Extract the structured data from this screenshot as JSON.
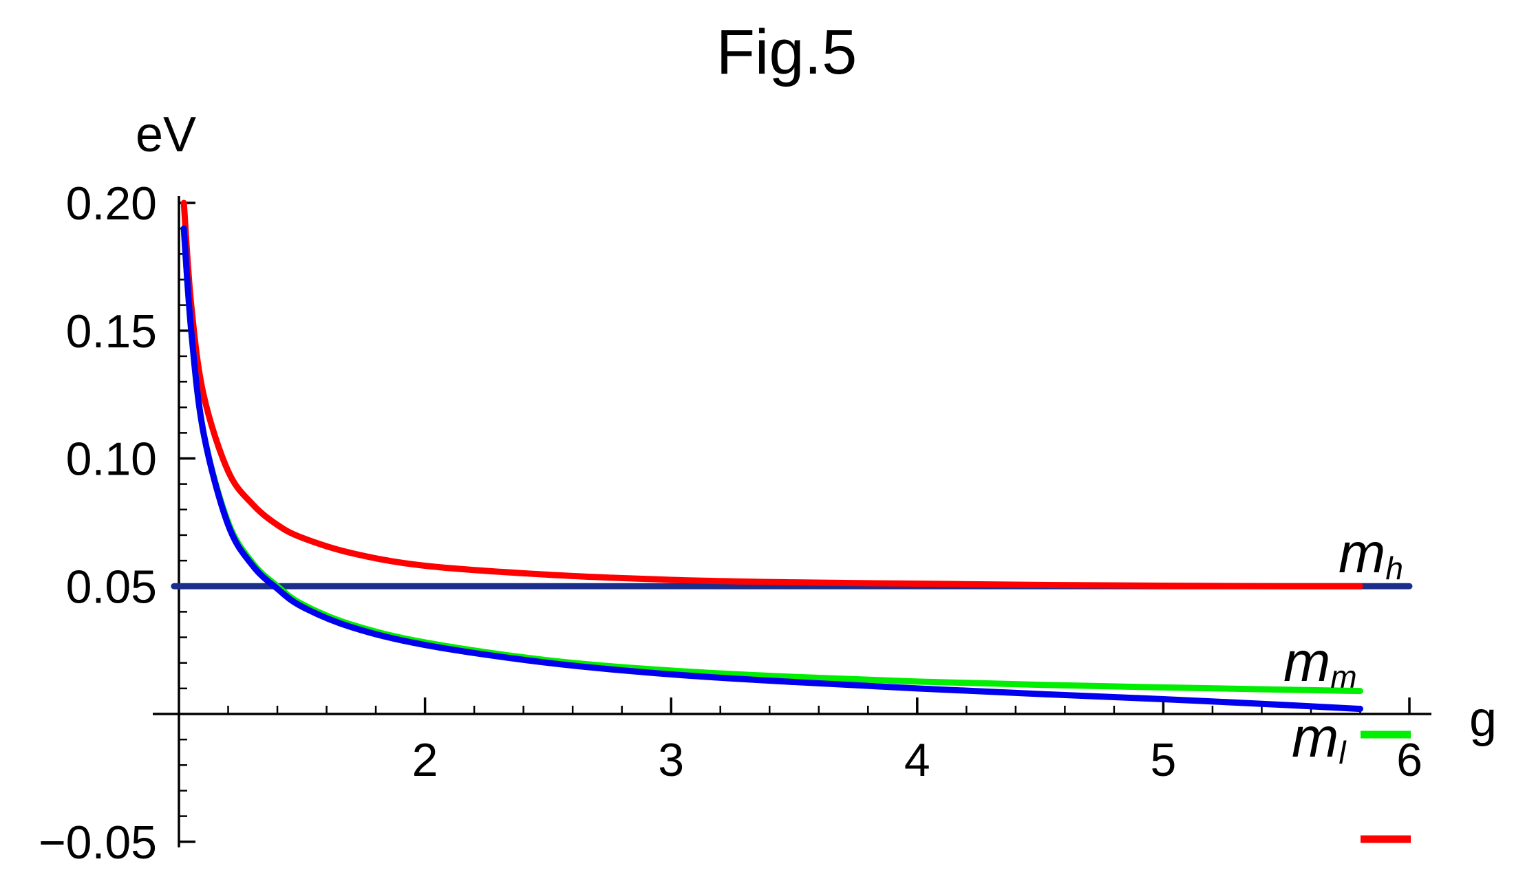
{
  "chart_data": {
    "type": "line",
    "title": "Fig.5",
    "xlabel": "g",
    "ylabel": "eV",
    "xlim": [
      1.0,
      6.0
    ],
    "ylim": [
      -0.05,
      0.2
    ],
    "x_ticks": [
      2,
      3,
      4,
      5,
      6
    ],
    "x_tick_labels": [
      "2",
      "3",
      "4",
      "5",
      "6"
    ],
    "y_ticks": [
      -0.05,
      0.05,
      0.1,
      0.15,
      0.2
    ],
    "y_tick_labels": [
      "−0.05",
      "0.05",
      "0.10",
      "0.15",
      "0.20"
    ],
    "grid": false,
    "series": [
      {
        "name": "m_h",
        "label_main": "m",
        "label_sub": "h",
        "color": "#ff0000",
        "x": [
          1.02,
          1.05,
          1.1,
          1.2,
          1.3,
          1.4,
          1.5,
          1.7,
          2.0,
          2.5,
          3.0,
          3.5,
          4.0,
          4.5,
          5.0,
          5.5,
          5.8
        ],
        "y": [
          0.2,
          0.16,
          0.125,
          0.095,
          0.082,
          0.074,
          0.069,
          0.063,
          0.058,
          0.0545,
          0.0525,
          0.0515,
          0.051,
          0.0505,
          0.0502,
          0.05,
          0.05
        ]
      },
      {
        "name": "m_m",
        "label_main": "m",
        "label_sub": "m",
        "color": "#00ee00",
        "x": [
          1.02,
          1.05,
          1.1,
          1.2,
          1.3,
          1.4,
          1.5,
          1.7,
          2.0,
          2.5,
          3.0,
          3.5,
          4.0,
          4.5,
          5.0,
          5.5,
          5.8
        ],
        "y": [
          0.19,
          0.15,
          0.11,
          0.075,
          0.059,
          0.05,
          0.043,
          0.035,
          0.028,
          0.021,
          0.017,
          0.0145,
          0.0127,
          0.0114,
          0.0104,
          0.0095,
          0.009
        ]
      },
      {
        "name": "m_l",
        "label_main": "m",
        "label_sub": "l",
        "color": "#0000ee",
        "x": [
          1.02,
          1.05,
          1.1,
          1.2,
          1.3,
          1.4,
          1.5,
          1.7,
          2.0,
          2.5,
          3.0,
          3.5,
          4.0,
          4.5,
          5.0,
          5.5,
          5.8
        ],
        "y": [
          0.19,
          0.15,
          0.11,
          0.074,
          0.058,
          0.049,
          0.042,
          0.034,
          0.027,
          0.02,
          0.0155,
          0.0125,
          0.01,
          0.0078,
          0.0058,
          0.0035,
          0.002
        ]
      },
      {
        "name": "0.05 eV line",
        "color": "#1a2e8a",
        "x": [
          0.98,
          6.0
        ],
        "y": [
          0.05,
          0.05
        ]
      }
    ]
  }
}
